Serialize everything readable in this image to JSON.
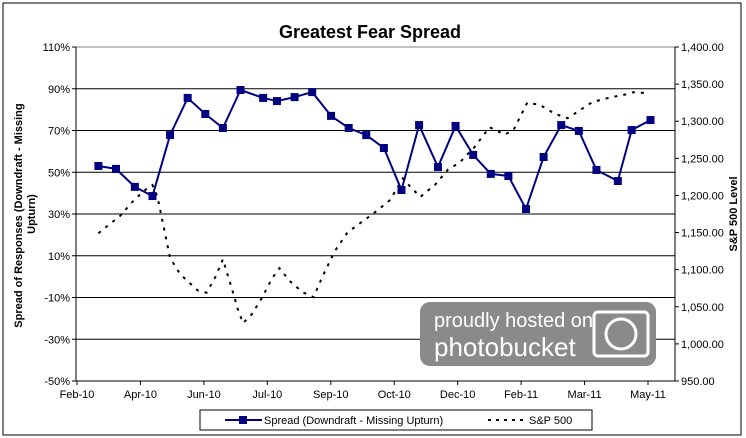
{
  "chart_data": {
    "type": "line",
    "title": "Greatest Fear Spread",
    "ylabel": "Spread of Responses (Downdraft - Missing Upturn)",
    "y2label": "S&P 500 Level",
    "xlabel": "",
    "xlim": [
      "2010-02-01",
      "2011-05-01"
    ],
    "ylim": [
      -50,
      110
    ],
    "y2lim": [
      950,
      1400
    ],
    "x_tick_labels": [
      "Feb-10",
      "Apr-10",
      "Jun-10",
      "Jul-10",
      "Sep-10",
      "Oct-10",
      "Dec-10",
      "Feb-11",
      "Mar-11",
      "May-11"
    ],
    "y_tick_labels": [
      "110%",
      "90%",
      "70%",
      "50%",
      "30%",
      "10%",
      "-10%",
      "-30%",
      "-50%"
    ],
    "y2_tick_labels": [
      "1,400.00",
      "1,350.00",
      "1,300.00",
      "1,250.00",
      "1,200.00",
      "1,150.00",
      "1,100.00",
      "1,050.00",
      "1,000.00",
      "950.00"
    ],
    "grid": true,
    "legend_position": "bottom",
    "series": [
      {
        "name": "Spread (Downdraft - Missing Upturn)",
        "axis": "left",
        "color": "#000080",
        "marker": "square",
        "x": [
          "2010-02-18",
          "2010-03-04",
          "2010-03-19",
          "2010-04-02",
          "2010-04-16",
          "2010-04-30",
          "2010-05-14",
          "2010-05-28",
          "2010-06-11",
          "2010-06-29",
          "2010-07-10",
          "2010-07-24",
          "2010-08-07",
          "2010-08-22",
          "2010-09-05",
          "2010-09-19",
          "2010-10-03",
          "2010-10-17",
          "2010-10-31",
          "2010-11-15",
          "2010-11-29",
          "2010-12-13",
          "2010-12-27",
          "2011-01-10",
          "2011-01-24",
          "2011-02-07",
          "2011-02-21",
          "2011-03-07",
          "2011-03-21",
          "2011-04-07",
          "2011-04-18",
          "2011-05-03"
        ],
        "values": [
          53,
          51.6,
          43,
          38.6,
          67.8,
          85.6,
          77.9,
          71.2,
          89.4,
          85.6,
          84.1,
          86,
          88.4,
          77,
          71.2,
          67.8,
          61.6,
          41.5,
          72.6,
          52.5,
          72.2,
          58.3,
          49.2,
          48.2,
          32.4,
          57.3,
          72.6,
          69.8,
          51.1,
          45.8,
          70.2,
          75
        ]
      },
      {
        "name": "S&P 500",
        "axis": "right",
        "color": "#000000",
        "marker": "none",
        "x": [
          "2010-02-18",
          "2010-02-26",
          "2010-03-07",
          "2010-03-19",
          "2010-03-29",
          "2010-04-02",
          "2010-04-06",
          "2010-04-16",
          "2010-04-24",
          "2010-05-08",
          "2010-05-15",
          "2010-05-22",
          "2010-05-28",
          "2010-06-04",
          "2010-06-09",
          "2010-06-13",
          "2010-06-20",
          "2010-06-28",
          "2010-07-06",
          "2010-07-12",
          "2010-07-20",
          "2010-07-30",
          "2010-08-08",
          "2010-08-15",
          "2010-08-25",
          "2010-09-04",
          "2010-09-16",
          "2010-09-28",
          "2010-10-08",
          "2010-10-18",
          "2010-10-25",
          "2010-11-01",
          "2010-11-13",
          "2010-11-23",
          "2010-12-02",
          "2010-12-14",
          "2010-12-26",
          "2011-01-07",
          "2011-01-14",
          "2011-01-25",
          "2011-02-04",
          "2011-02-16",
          "2011-02-26",
          "2011-03-08",
          "2011-03-18",
          "2011-04-01",
          "2011-04-13",
          "2011-04-19",
          "2011-04-29"
        ],
        "values": [
          1149,
          1160,
          1172,
          1195,
          1210,
          1214,
          1198,
          1116,
          1094,
          1072,
          1069,
          1090,
          1114,
          1075,
          1046,
          1028,
          1040,
          1062,
          1088,
          1102,
          1085,
          1070,
          1063,
          1090,
          1125,
          1150,
          1165,
          1180,
          1194,
          1223,
          1210,
          1198,
          1215,
          1235,
          1244,
          1265,
          1292,
          1282,
          1288,
          1325,
          1322,
          1310,
          1304,
          1315,
          1326,
          1332,
          1336,
          1339,
          1338
        ]
      }
    ]
  },
  "watermark": {
    "line1": "proudly hosted on",
    "line2": "photobucket"
  }
}
